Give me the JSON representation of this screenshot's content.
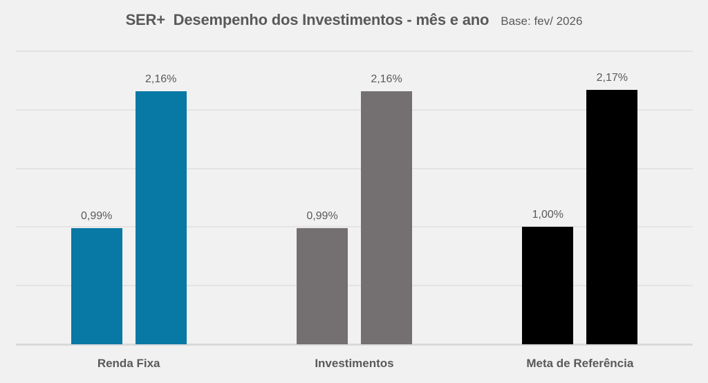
{
  "chart_data": {
    "type": "bar",
    "title": "SER+  Desempenho dos Investimentos - mês e ano",
    "subtitle": "Base: fev/ 2026",
    "categories": [
      "Renda Fixa",
      "Investimentos",
      "Meta de Referência"
    ],
    "series": [
      {
        "name": "mês",
        "values": [
          0.99,
          0.99,
          1.0
        ]
      },
      {
        "name": "ano",
        "values": [
          2.16,
          2.16,
          2.17
        ]
      }
    ],
    "data_labels": [
      [
        "0,99%",
        "2,16%"
      ],
      [
        "0,99%",
        "2,16%"
      ],
      [
        "1,00%",
        "2,17%"
      ]
    ],
    "category_colors": [
      "#0878a4",
      "#747071",
      "#000000"
    ],
    "xlabel": "",
    "ylabel": "",
    "ylim": [
      0,
      2.5
    ],
    "grid_step": 0.5,
    "grid": true,
    "legend": "none"
  },
  "colors": {
    "background": "#f1f1f1",
    "gridline": "#e3e3e4",
    "axis_line": "#d9d9da",
    "text": "#595959"
  }
}
